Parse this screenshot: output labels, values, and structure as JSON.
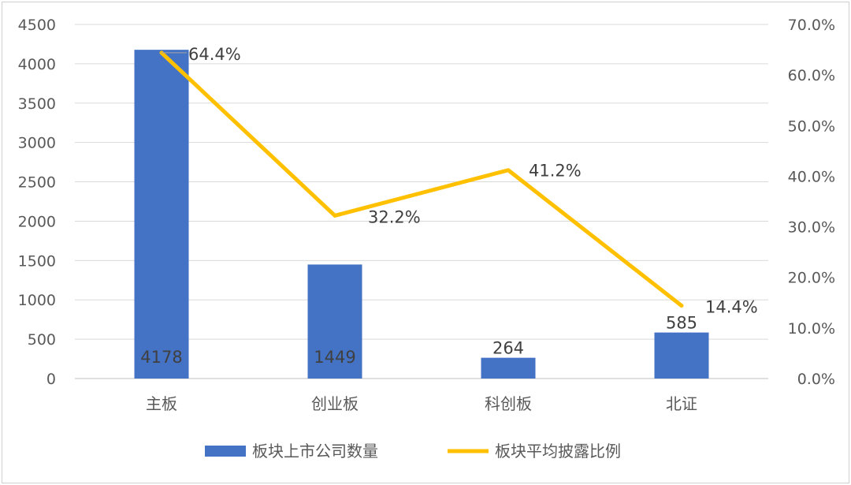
{
  "chart_data": {
    "type": "bar",
    "categories": [
      "主板",
      "创业板",
      "科创板",
      "北证"
    ],
    "series": [
      {
        "name": "板块上市公司数量",
        "type": "bar",
        "axis": "left",
        "values": [
          4178,
          1449,
          264,
          585
        ],
        "labels": [
          "4178",
          "1449",
          "264",
          "585"
        ],
        "color": "#4472C4"
      },
      {
        "name": "板块平均披露比例",
        "type": "line",
        "axis": "right",
        "values": [
          64.4,
          32.2,
          41.2,
          14.4
        ],
        "labels": [
          "64.4%",
          "32.2%",
          "41.2%",
          "14.4%"
        ],
        "color": "#FFC000"
      }
    ],
    "y_left": {
      "min": 0,
      "max": 4500,
      "step": 500,
      "ticks": [
        "0",
        "500",
        "1000",
        "1500",
        "2000",
        "2500",
        "3000",
        "3500",
        "4000",
        "4500"
      ]
    },
    "y_right": {
      "min": 0,
      "max": 70,
      "step": 10,
      "ticks": [
        "0.0%",
        "10.0%",
        "20.0%",
        "30.0%",
        "40.0%",
        "50.0%",
        "60.0%",
        "70.0%"
      ]
    },
    "grid": true,
    "legend_position": "bottom",
    "gridline_color": "#D9D9D9"
  }
}
